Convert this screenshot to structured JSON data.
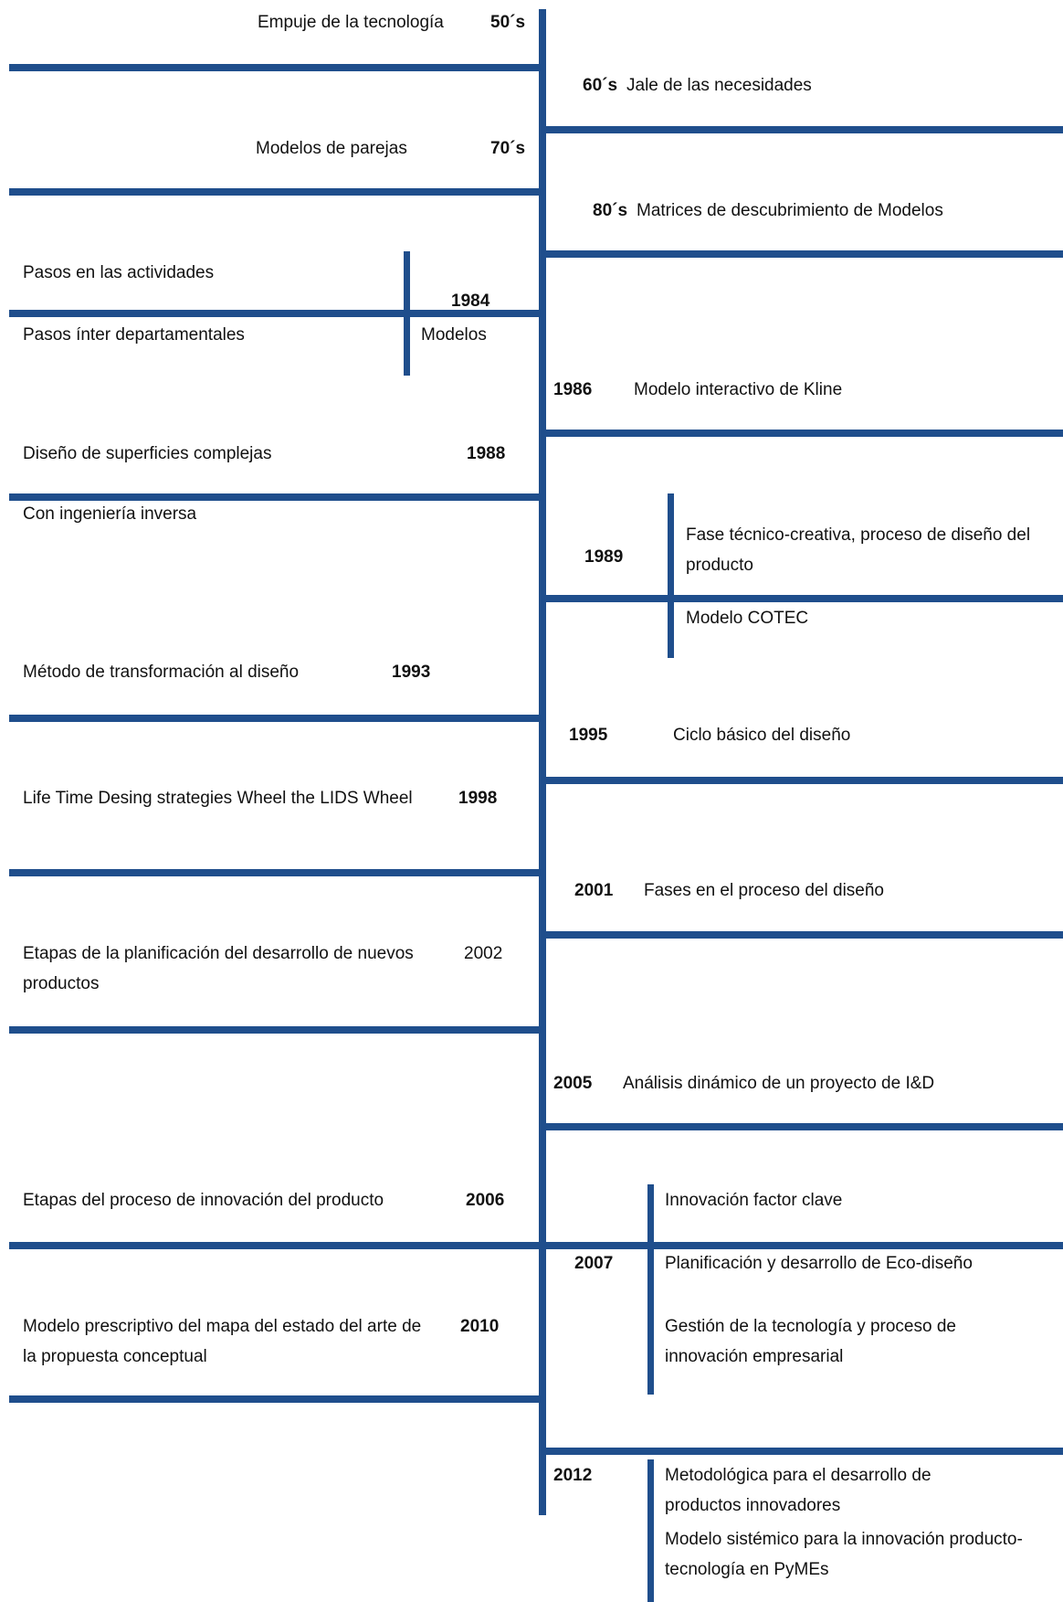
{
  "colors": {
    "line": "#1f4e8c",
    "text": "#111111",
    "background": "#ffffff"
  },
  "entries": [
    {
      "year": "50´s",
      "text": "Empuje de la tecnología"
    },
    {
      "year": "60´s",
      "text": "Jale de las necesidades"
    },
    {
      "year": "70´s",
      "text": "Modelos de parejas"
    },
    {
      "year": "80´s",
      "text": "Matrices de descubrimiento de Modelos"
    },
    {
      "year": "1984",
      "text_top": "Pasos en las actividades",
      "text_bottom": "Pasos ínter departamentales",
      "text_right": "Modelos"
    },
    {
      "year": "1986",
      "text": "Modelo interactivo de Kline"
    },
    {
      "year": "1988",
      "text": "Diseño de superficies complejas",
      "text_bottom": "Con ingeniería inversa"
    },
    {
      "year": "1989",
      "text_top": "Fase técnico-creativa, proceso de diseño del producto",
      "text_bottom": "Modelo COTEC"
    },
    {
      "year": "1993",
      "text": "Método de transformación al diseño"
    },
    {
      "year": "1995",
      "text": "Ciclo básico del diseño"
    },
    {
      "year": "1998",
      "text": "Life Time Desing strategies Wheel the LIDS Wheel"
    },
    {
      "year": "2001",
      "text": "Fases en el proceso del diseño"
    },
    {
      "year": "2002",
      "text": "Etapas de la planificación del desarrollo de nuevos productos"
    },
    {
      "year": "2005",
      "text": "Análisis dinámico de un proyecto de  I&D"
    },
    {
      "year": "2006",
      "text": "Etapas del proceso de innovación del producto"
    },
    {
      "year": "2007",
      "items": [
        "Innovación factor clave",
        "Planificación y desarrollo de Eco-diseño",
        "Gestión de la tecnología y proceso de innovación empresarial"
      ]
    },
    {
      "year": "2010",
      "text": "Modelo prescriptivo del mapa del estado del arte de la propuesta conceptual"
    },
    {
      "year": "2012",
      "items": [
        "Metodológica para el desarrollo de productos innovadores",
        "Modelo sistémico para la innovación producto-tecnología  en PyMEs"
      ]
    }
  ]
}
